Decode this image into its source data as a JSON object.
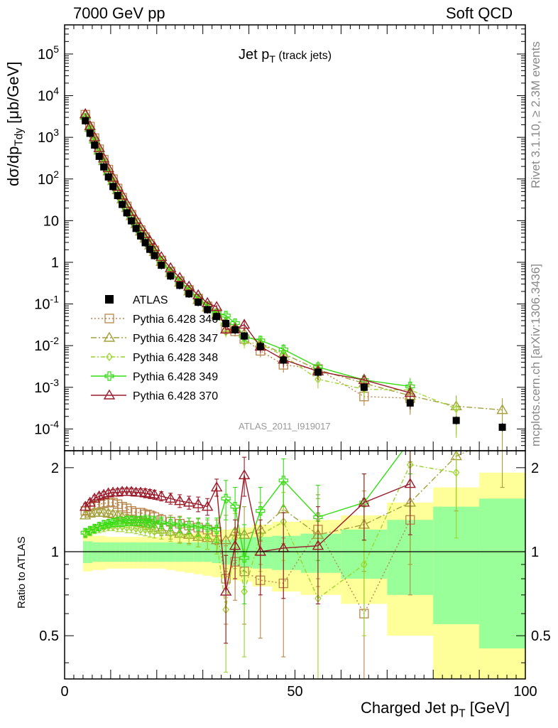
{
  "header": {
    "left": "7000 GeV pp",
    "right": "Soft QCD"
  },
  "side_text": {
    "upper": "Rivet 3.1.10, ≥ 2.3M events",
    "lower": "mcplots.cern.ch [arXiv:1306.3436]"
  },
  "labels": {
    "title_main": "Jet p",
    "title_sub": "T",
    "title_extra": " (track jets)",
    "ylabel_main": "dσ/dp",
    "ylabel_sub": "Tdy",
    "ylabel_unit": " [μb/GeV]",
    "ratio_ylabel": "Ratio to ATLAS",
    "xlabel_main": "Charged Jet p",
    "xlabel_sub": "T",
    "xlabel_unit": " [GeV]",
    "analysis_id": "ATLAS_2011_I919017"
  },
  "chart_data": {
    "type": "scatter",
    "xlim": [
      0,
      100
    ],
    "ylim_main": [
      3e-05,
      500000
    ],
    "ylim_ratio": [
      0.35,
      2.3
    ],
    "log_y_main": true,
    "log_y_ratio": true,
    "main_yticks": [
      "10^5",
      "10^4",
      "10^3",
      "10^2",
      "10",
      "1",
      "10^-1",
      "10^-2",
      "10^-3",
      "10^-4"
    ],
    "xticks": [
      "0",
      "50",
      "100"
    ],
    "ratio_yticks": [
      "0.5",
      "1",
      "2"
    ],
    "legend_position": "middle-left",
    "reference": {
      "name": "ATLAS",
      "color": "#000000",
      "x": [
        4.5,
        5.5,
        6.5,
        7.5,
        8.5,
        9.5,
        10.5,
        11.5,
        12.5,
        13.5,
        14.5,
        15.5,
        16.5,
        17.5,
        18.5,
        19.5,
        21,
        23,
        25,
        27,
        29,
        31,
        33,
        35,
        37,
        39,
        42.5,
        47.5,
        55,
        65,
        75,
        85,
        95
      ],
      "y": [
        2500,
        1250,
        650,
        350,
        195,
        112,
        66,
        40,
        24.5,
        15.4,
        9.9,
        6.5,
        4.3,
        2.95,
        2.05,
        1.45,
        0.85,
        0.47,
        0.28,
        0.175,
        0.11,
        0.073,
        0.05,
        0.034,
        0.024,
        0.017,
        0.0095,
        0.0045,
        0.0023,
        0.001,
        0.00042,
        0.00016,
        0.00011
      ],
      "ratio_band_inner": [
        0.09,
        0.09,
        0.08,
        0.08,
        0.08,
        0.08,
        0.08,
        0.08,
        0.08,
        0.08,
        0.08,
        0.08,
        0.08,
        0.08,
        0.08,
        0.08,
        0.08,
        0.08,
        0.08,
        0.08,
        0.08,
        0.08,
        0.09,
        0.1,
        0.11,
        0.12,
        0.13,
        0.14,
        0.16,
        0.2,
        0.3,
        0.45,
        0.55
      ],
      "ratio_band_outer": [
        0.15,
        0.15,
        0.14,
        0.14,
        0.14,
        0.13,
        0.13,
        0.13,
        0.13,
        0.13,
        0.13,
        0.13,
        0.13,
        0.13,
        0.13,
        0.13,
        0.13,
        0.14,
        0.15,
        0.16,
        0.17,
        0.18,
        0.19,
        0.2,
        0.21,
        0.22,
        0.25,
        0.28,
        0.3,
        0.35,
        0.5,
        0.7,
        0.92
      ]
    },
    "series": [
      {
        "name": "Pythia 6.428 346",
        "color": "#b8864b",
        "marker": "square",
        "dash": "2,3",
        "x": [
          4.5,
          5.5,
          6.5,
          7.5,
          8.5,
          9.5,
          10.5,
          11.5,
          12.5,
          13.5,
          14.5,
          15.5,
          16.5,
          17.5,
          18.5,
          19.5,
          21,
          23,
          25,
          27,
          29,
          31,
          33,
          35,
          37,
          39,
          42.5,
          47.5,
          55,
          65,
          75
        ],
        "ratio": [
          1.4,
          1.45,
          1.47,
          1.48,
          1.49,
          1.5,
          1.5,
          1.48,
          1.45,
          1.43,
          1.4,
          1.38,
          1.38,
          1.36,
          1.35,
          1.33,
          1.3,
          1.28,
          1.26,
          1.24,
          1.22,
          1.2,
          1.18,
          0.8,
          0.92,
          0.85,
          0.79,
          0.77,
          1.2,
          0.6,
          1.3
        ],
        "ratio_err": [
          0.04,
          0.04,
          0.04,
          0.04,
          0.04,
          0.04,
          0.04,
          0.05,
          0.05,
          0.05,
          0.05,
          0.05,
          0.05,
          0.06,
          0.06,
          0.06,
          0.06,
          0.07,
          0.08,
          0.08,
          0.09,
          0.1,
          0.12,
          0.25,
          0.25,
          0.3,
          0.3,
          0.35,
          0.4,
          0.4,
          0.6
        ]
      },
      {
        "name": "Pythia 6.428 347",
        "color": "#a5a03a",
        "marker": "triangle",
        "dash": "8,3,2,3",
        "x": [
          4.5,
          5.5,
          6.5,
          7.5,
          8.5,
          9.5,
          10.5,
          11.5,
          12.5,
          13.5,
          14.5,
          15.5,
          16.5,
          17.5,
          18.5,
          19.5,
          21,
          23,
          25,
          27,
          29,
          31,
          33,
          35,
          37,
          39,
          42.5,
          47.5,
          55,
          65,
          75,
          85,
          95
        ],
        "ratio": [
          1.35,
          1.37,
          1.38,
          1.38,
          1.38,
          1.37,
          1.36,
          1.35,
          1.33,
          1.31,
          1.3,
          1.28,
          1.27,
          1.26,
          1.24,
          1.22,
          1.2,
          1.18,
          1.16,
          1.15,
          1.13,
          1.12,
          1.1,
          1.1,
          1.18,
          1.15,
          1.2,
          1.42,
          1.15,
          1.25,
          1.5,
          2.2,
          2.6
        ],
        "ratio_err": [
          0.04,
          0.04,
          0.04,
          0.04,
          0.04,
          0.04,
          0.04,
          0.05,
          0.05,
          0.05,
          0.05,
          0.05,
          0.05,
          0.06,
          0.06,
          0.06,
          0.06,
          0.07,
          0.08,
          0.08,
          0.09,
          0.1,
          0.12,
          0.25,
          0.25,
          0.3,
          0.3,
          0.35,
          0.4,
          0.4,
          0.6,
          0.8,
          0.9
        ]
      },
      {
        "name": "Pythia 6.428 348",
        "color": "#9bd62a",
        "marker": "diamond",
        "dash": "6,3,2,3",
        "x": [
          4.5,
          5.5,
          6.5,
          7.5,
          8.5,
          9.5,
          10.5,
          11.5,
          12.5,
          13.5,
          14.5,
          15.5,
          16.5,
          17.5,
          18.5,
          19.5,
          21,
          23,
          25,
          27,
          29,
          31,
          33,
          35,
          37,
          39,
          42.5,
          47.5,
          55,
          65,
          75,
          85
        ],
        "ratio": [
          1.16,
          1.18,
          1.2,
          1.21,
          1.22,
          1.23,
          1.23,
          1.23,
          1.23,
          1.22,
          1.22,
          1.21,
          1.2,
          1.2,
          1.19,
          1.18,
          1.17,
          1.16,
          1.15,
          1.14,
          1.13,
          1.12,
          1.1,
          0.62,
          1.12,
          0.72,
          1.15,
          1.28,
          0.68,
          0.9,
          2.05,
          1.92
        ],
        "ratio_err": [
          0.04,
          0.04,
          0.04,
          0.04,
          0.04,
          0.04,
          0.04,
          0.05,
          0.05,
          0.05,
          0.05,
          0.05,
          0.05,
          0.06,
          0.06,
          0.06,
          0.06,
          0.07,
          0.08,
          0.08,
          0.09,
          0.1,
          0.12,
          0.25,
          0.25,
          0.3,
          0.3,
          0.35,
          0.4,
          0.4,
          0.6,
          0.8
        ]
      },
      {
        "name": "Pythia 6.428 349",
        "color": "#33dd11",
        "marker": "cross",
        "dash": "",
        "x": [
          4.5,
          5.5,
          6.5,
          7.5,
          8.5,
          9.5,
          10.5,
          11.5,
          12.5,
          13.5,
          14.5,
          15.5,
          16.5,
          17.5,
          18.5,
          19.5,
          21,
          23,
          25,
          27,
          29,
          31,
          33,
          35,
          37,
          39,
          42.5,
          47.5,
          55,
          65,
          75
        ],
        "ratio": [
          1.17,
          1.19,
          1.21,
          1.23,
          1.25,
          1.26,
          1.27,
          1.28,
          1.28,
          1.29,
          1.29,
          1.29,
          1.29,
          1.29,
          1.28,
          1.28,
          1.27,
          1.26,
          1.25,
          1.24,
          1.23,
          1.22,
          1.2,
          1.55,
          1.45,
          0.95,
          1.4,
          1.8,
          1.33,
          1.5,
          2.5
        ],
        "ratio_err": [
          0.04,
          0.04,
          0.04,
          0.04,
          0.04,
          0.04,
          0.04,
          0.05,
          0.05,
          0.05,
          0.05,
          0.05,
          0.05,
          0.06,
          0.06,
          0.06,
          0.06,
          0.07,
          0.08,
          0.08,
          0.09,
          0.1,
          0.12,
          0.25,
          0.25,
          0.3,
          0.3,
          0.35,
          0.4,
          0.4,
          0.6
        ]
      },
      {
        "name": "Pythia 6.428 370",
        "color": "#9b1b2b",
        "marker": "triangle",
        "dash": "",
        "x": [
          4.5,
          5.5,
          6.5,
          7.5,
          8.5,
          9.5,
          10.5,
          11.5,
          12.5,
          13.5,
          14.5,
          15.5,
          16.5,
          17.5,
          18.5,
          19.5,
          21,
          23,
          25,
          27,
          29,
          31,
          33,
          35,
          37,
          39,
          42.5,
          47.5,
          55,
          65,
          75
        ],
        "ratio": [
          1.45,
          1.5,
          1.55,
          1.58,
          1.6,
          1.62,
          1.63,
          1.63,
          1.64,
          1.64,
          1.64,
          1.63,
          1.63,
          1.62,
          1.61,
          1.6,
          1.58,
          1.55,
          1.52,
          1.5,
          1.48,
          1.45,
          1.7,
          0.72,
          1.05,
          1.88,
          1.0,
          1.03,
          1.05,
          1.5,
          1.75
        ],
        "ratio_err": [
          0.04,
          0.04,
          0.04,
          0.04,
          0.04,
          0.04,
          0.04,
          0.05,
          0.05,
          0.05,
          0.05,
          0.05,
          0.05,
          0.06,
          0.06,
          0.06,
          0.06,
          0.07,
          0.08,
          0.08,
          0.09,
          0.1,
          0.12,
          0.25,
          0.25,
          0.3,
          0.3,
          0.35,
          0.4,
          0.4,
          0.6
        ]
      }
    ]
  }
}
